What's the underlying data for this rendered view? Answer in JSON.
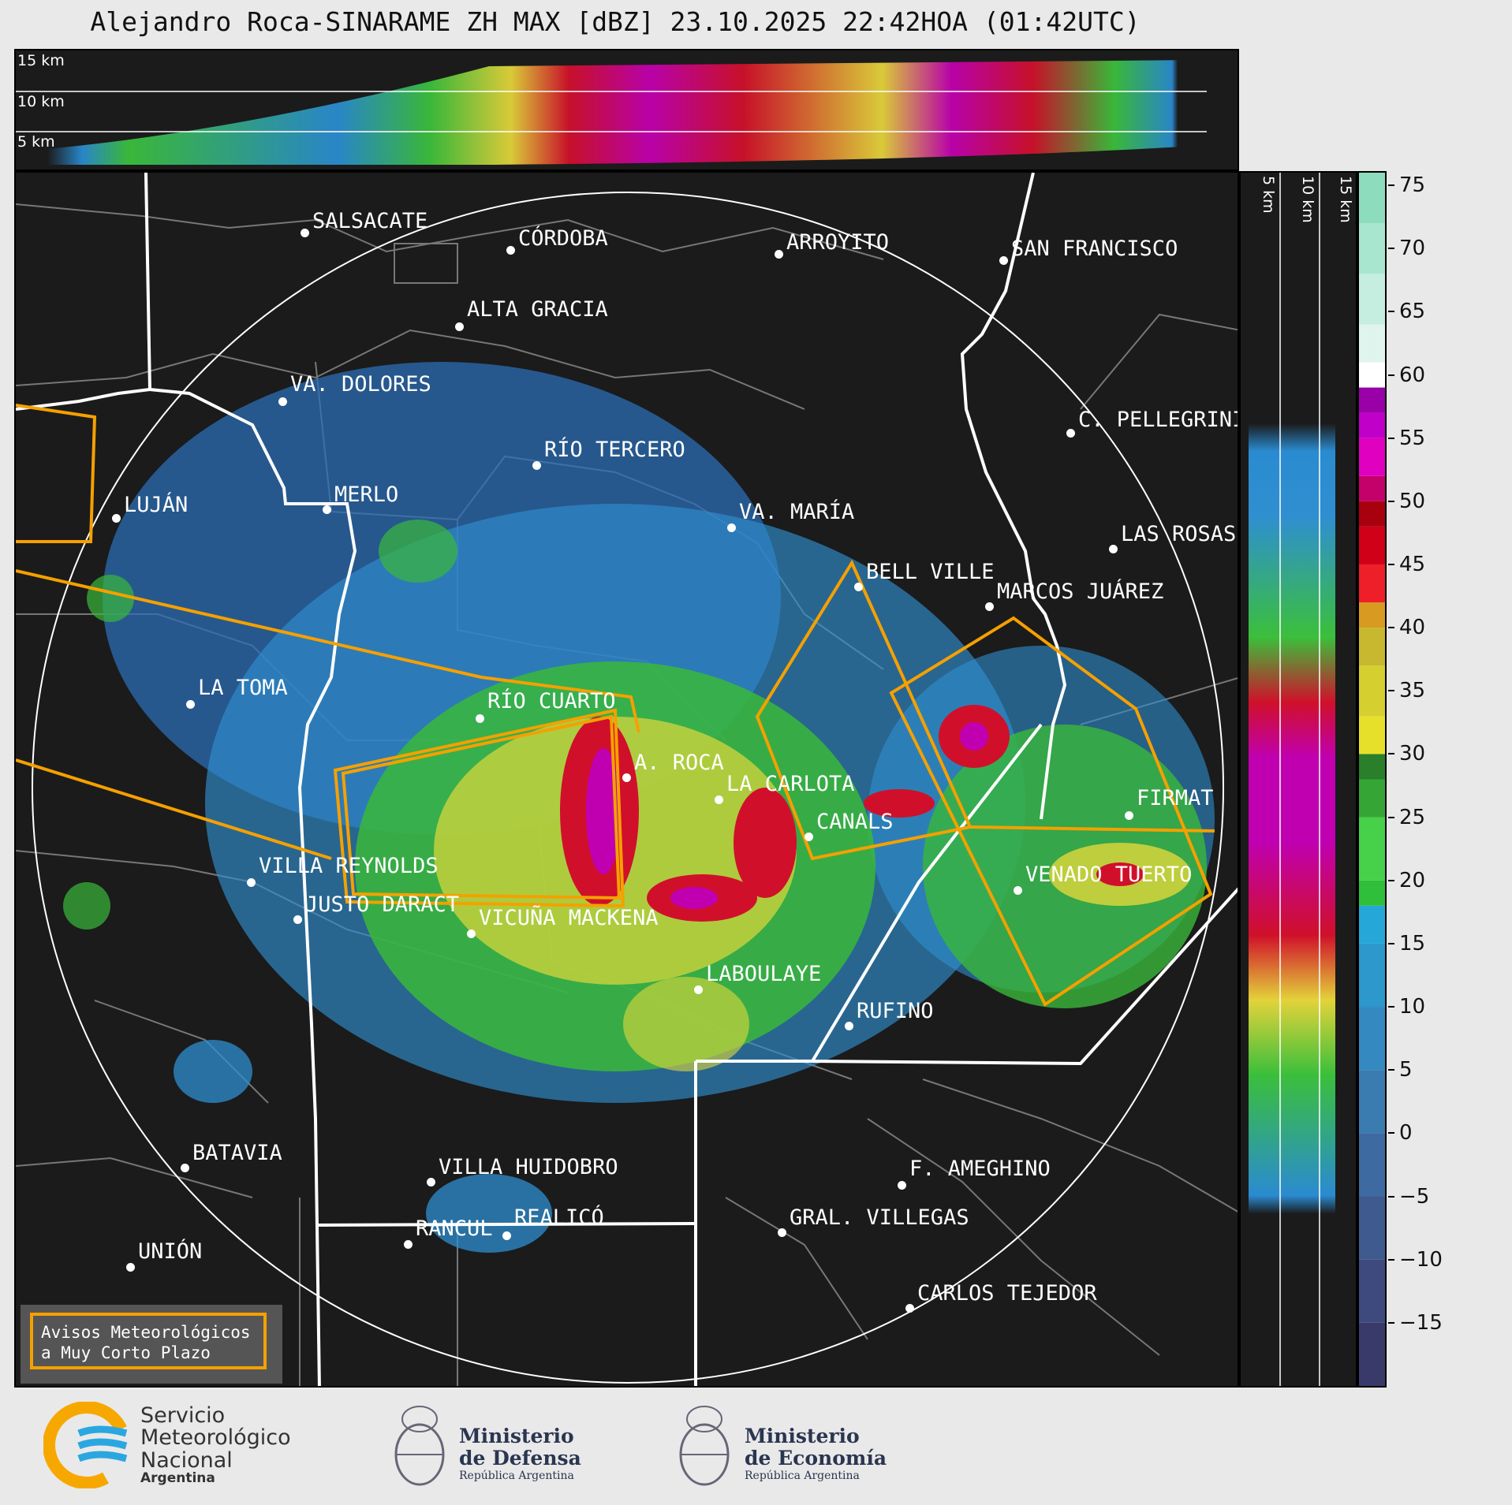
{
  "title": "Alejandro Roca-SINARAME ZH MAX [dBZ] 23.10.2025 22:42HOA (01:42UTC)",
  "top_panel": {
    "height_labels": [
      "15 km",
      "10 km",
      "5 km"
    ]
  },
  "side_panel": {
    "height_labels": [
      "5 km",
      "10 km",
      "15 km"
    ]
  },
  "cities": [
    {
      "name": "SALSACATE"
    },
    {
      "name": "CÓRDOBA"
    },
    {
      "name": "ARROYITO"
    },
    {
      "name": "SAN FRANCISCO"
    },
    {
      "name": "ALTA GRACIA"
    },
    {
      "name": "VA. DOLORES"
    },
    {
      "name": "C. PELLEGRINI"
    },
    {
      "name": "RÍO TERCERO"
    },
    {
      "name": "LUJÁN"
    },
    {
      "name": "MERLO"
    },
    {
      "name": "VA. MARÍA"
    },
    {
      "name": "LAS ROSAS"
    },
    {
      "name": "BELL VILLE"
    },
    {
      "name": "MARCOS JUÁREZ"
    },
    {
      "name": "LA TOMA"
    },
    {
      "name": "RÍO CUARTO"
    },
    {
      "name": "A. ROCA"
    },
    {
      "name": "LA CARLOTA"
    },
    {
      "name": "FIRMAT"
    },
    {
      "name": "CANALS"
    },
    {
      "name": "VILLA REYNOLDS"
    },
    {
      "name": "VENADO TUERTO"
    },
    {
      "name": "JUSTO DARACT"
    },
    {
      "name": "VICUÑA MACKENA"
    },
    {
      "name": "LABOULAYE"
    },
    {
      "name": "RUFINO"
    },
    {
      "name": "BATAVIA"
    },
    {
      "name": "VILLA HUIDOBRO"
    },
    {
      "name": "F. AMEGHINO"
    },
    {
      "name": "REALICÓ"
    },
    {
      "name": "RANCUL"
    },
    {
      "name": "GRAL. VILLEGAS"
    },
    {
      "name": "UNIÓN"
    },
    {
      "name": "CARLOS TEJEDOR"
    }
  ],
  "legend": {
    "line1": "Avisos Meteorológicos",
    "line2": "a Muy Corto Plazo"
  },
  "colorbar": {
    "unit": "dBZ",
    "ticks": [
      "75",
      "70",
      "65",
      "60",
      "55",
      "50",
      "45",
      "40",
      "35",
      "30",
      "25",
      "20",
      "15",
      "10",
      "5",
      "0",
      "−5",
      "−10",
      "−15"
    ],
    "min": -20,
    "max": 76
  },
  "footer": {
    "smn": {
      "line1": "Servicio",
      "line2": "Meteorológico",
      "line3": "Nacional",
      "line4": "Argentina"
    },
    "defensa": {
      "line1": "Ministerio",
      "line2": "de Defensa",
      "line3": "República Argentina"
    },
    "economia": {
      "line1": "Ministerio",
      "line2": "de Economía",
      "line3": "República Argentina"
    }
  },
  "colors": {
    "warning_outline": "#f5a000",
    "background": "#1b1b1b",
    "borders": "#ffffff"
  }
}
